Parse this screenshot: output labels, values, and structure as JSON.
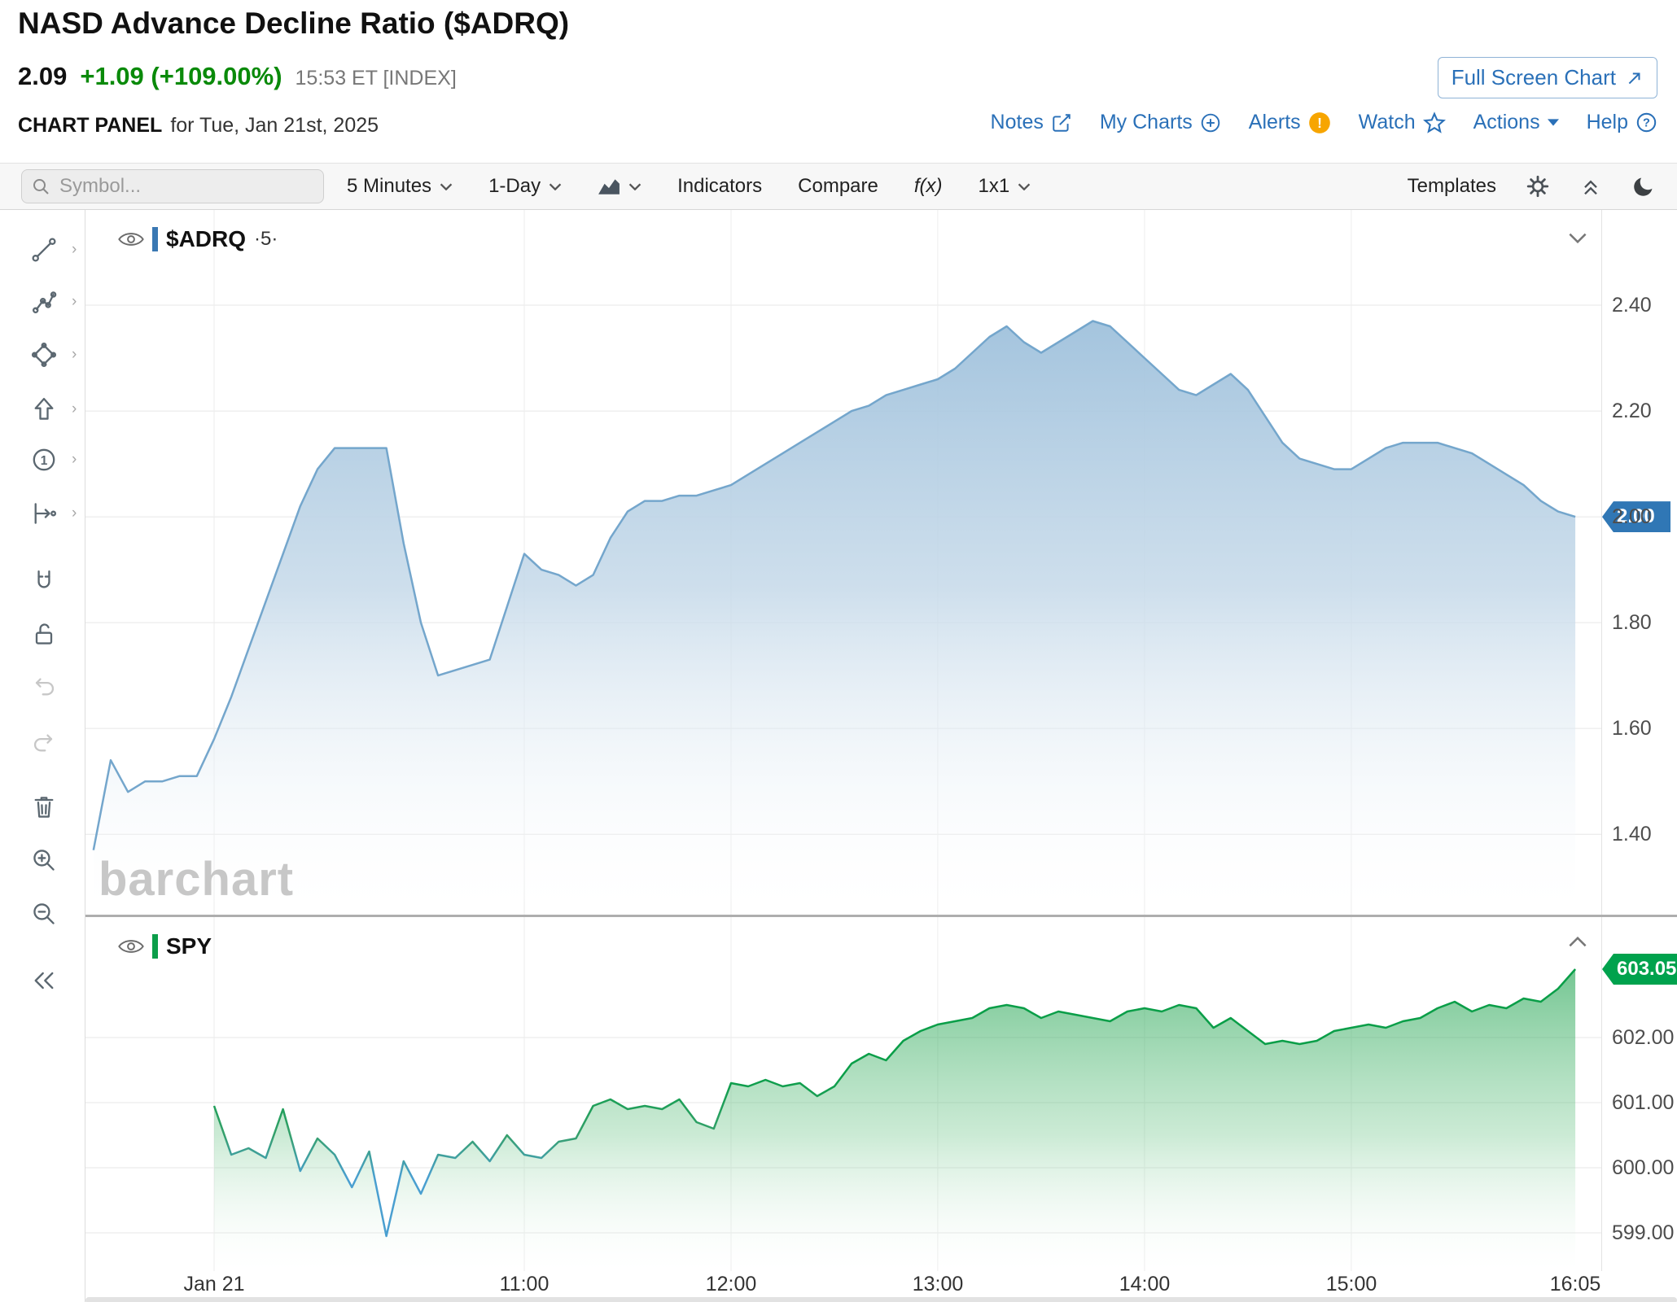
{
  "header": {
    "title": "NASD Advance Decline Ratio ($ADRQ)",
    "price": "2.09",
    "change": "+1.09 (+109.00%)",
    "quote_meta": "15:53 ET [INDEX]",
    "fullscreen_label": "Full Screen Chart",
    "panel_label": "CHART PANEL",
    "panel_date": "for Tue, Jan 21st, 2025",
    "links": {
      "notes": "Notes",
      "my_charts": "My Charts",
      "alerts": "Alerts",
      "watch": "Watch",
      "actions": "Actions",
      "help": "Help"
    }
  },
  "toolbar": {
    "symbol_placeholder": "Symbol...",
    "timeframe": "5 Minutes",
    "range": "1-Day",
    "indicators": "Indicators",
    "compare": "Compare",
    "fx": "f(x)",
    "grid_layout": "1x1",
    "templates": "Templates"
  },
  "tools": {
    "names": [
      "trendline",
      "multi-point",
      "shapes",
      "arrow",
      "number-label",
      "measure",
      "magnet",
      "unlock",
      "undo",
      "redo",
      "delete-drawings",
      "zoom-in",
      "zoom-out",
      "collapse-toolbar"
    ]
  },
  "chart": {
    "legend_main_symbol": "$ADRQ",
    "legend_main_interval": "·5·",
    "legend_spy": "SPY",
    "watermark": "barchart",
    "main_tag": "2.00",
    "spy_tag": "603.05"
  },
  "colors": {
    "link_blue": "#2a70b8",
    "change_green": "#0a8a0a",
    "adrq_line": "#74a6cc",
    "adrq_fill_top": "#9fc1dc",
    "spy_green": "#0c9e4a",
    "spy_blue": "#4a9fd0",
    "tag_blue": "#3077b5",
    "tag_green": "#00a24d",
    "alert_orange": "#f7a500"
  },
  "chart_data": [
    {
      "type": "area",
      "name": "$ADRQ NASD Advance Decline Ratio, 5-minute",
      "t_start": 8.9167,
      "step_hours": 0.0833333,
      "values": [
        1.37,
        1.54,
        1.48,
        1.5,
        1.5,
        1.51,
        1.51,
        1.58,
        1.66,
        1.75,
        1.84,
        1.93,
        2.02,
        2.09,
        2.13,
        2.13,
        2.13,
        2.13,
        1.95,
        1.8,
        1.7,
        1.71,
        1.72,
        1.73,
        1.83,
        1.93,
        1.9,
        1.89,
        1.87,
        1.89,
        1.96,
        2.01,
        2.03,
        2.03,
        2.04,
        2.04,
        2.05,
        2.06,
        2.08,
        2.1,
        2.12,
        2.14,
        2.16,
        2.18,
        2.2,
        2.21,
        2.23,
        2.24,
        2.25,
        2.26,
        2.28,
        2.31,
        2.34,
        2.36,
        2.33,
        2.31,
        2.33,
        2.35,
        2.37,
        2.36,
        2.33,
        2.3,
        2.27,
        2.24,
        2.23,
        2.25,
        2.27,
        2.24,
        2.19,
        2.14,
        2.11,
        2.1,
        2.09,
        2.09,
        2.11,
        2.13,
        2.14,
        2.14,
        2.14,
        2.13,
        2.12,
        2.1,
        2.08,
        2.06,
        2.03,
        2.01,
        2.0
      ],
      "xlim": [
        8.878,
        16.209
      ],
      "ylim": [
        1.248,
        2.58
      ],
      "y_ticks": [
        {
          "v": 2.4,
          "label": "2.40"
        },
        {
          "v": 2.2,
          "label": "2.20"
        },
        {
          "v": 2.0,
          "label": "2.00"
        },
        {
          "v": 1.8,
          "label": "1.80"
        },
        {
          "v": 1.6,
          "label": "1.60"
        },
        {
          "v": 1.4,
          "label": "1.40"
        }
      ],
      "y_grid": [
        2.4,
        2.2,
        2.0,
        1.8,
        1.6,
        1.4
      ],
      "x_grid": [
        9.5,
        11,
        12,
        13,
        14,
        15
      ],
      "time_ticks": [
        {
          "t": 9.5,
          "label": "Jan 21"
        },
        {
          "t": 11,
          "label": "11:00"
        },
        {
          "t": 12,
          "label": "12:00"
        },
        {
          "t": 13,
          "label": "13:00"
        },
        {
          "t": 14,
          "label": "14:00"
        },
        {
          "t": 15,
          "label": "15:00"
        },
        {
          "t": 16.083,
          "label": "16:05"
        }
      ],
      "tag_value": 2.0
    },
    {
      "type": "area",
      "name": "SPY comparison, 5-minute",
      "t_start": 9.5,
      "step_hours": 0.0833333,
      "values": [
        600.95,
        600.2,
        600.3,
        600.15,
        600.9,
        599.95,
        600.45,
        600.2,
        599.7,
        600.25,
        598.95,
        600.1,
        599.6,
        600.2,
        600.15,
        600.4,
        600.1,
        600.5,
        600.2,
        600.15,
        600.4,
        600.45,
        600.95,
        601.05,
        600.9,
        600.95,
        600.9,
        601.05,
        600.7,
        600.6,
        601.3,
        601.25,
        601.35,
        601.25,
        601.3,
        601.1,
        601.25,
        601.6,
        601.75,
        601.65,
        601.95,
        602.1,
        602.2,
        602.25,
        602.3,
        602.45,
        602.5,
        602.45,
        602.3,
        602.4,
        602.35,
        602.3,
        602.25,
        602.4,
        602.45,
        602.4,
        602.5,
        602.45,
        602.15,
        602.3,
        602.1,
        601.9,
        601.95,
        601.9,
        601.95,
        602.1,
        602.15,
        602.2,
        602.15,
        602.25,
        602.3,
        602.45,
        602.55,
        602.4,
        602.5,
        602.45,
        602.6,
        602.55,
        602.75,
        603.05
      ],
      "xlim": [
        8.878,
        16.209
      ],
      "ylim": [
        598.4125,
        603.85
      ],
      "y_ticks": [
        {
          "v": 602,
          "label": "602.00"
        },
        {
          "v": 601,
          "label": "601.00"
        },
        {
          "v": 600,
          "label": "600.00"
        },
        {
          "v": 599,
          "label": "599.00"
        }
      ],
      "y_grid": [
        602,
        601,
        600,
        599
      ],
      "x_grid": [
        9.5,
        11,
        12,
        13,
        14,
        15
      ],
      "tag_value": 603.05
    }
  ]
}
